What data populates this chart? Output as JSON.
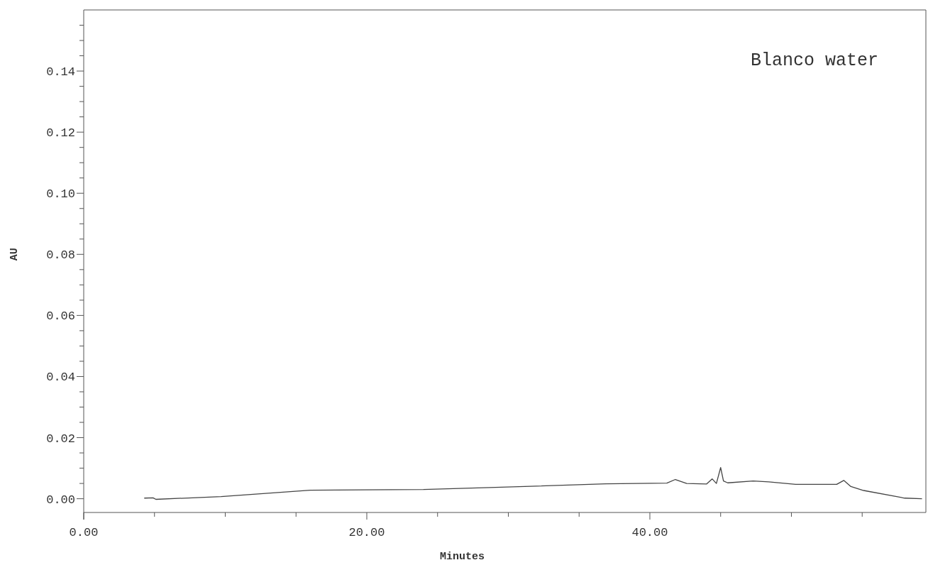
{
  "chart_data": {
    "type": "line",
    "xlabel": "Minutes",
    "ylabel": "AU",
    "annotations": [
      "Blanco water"
    ],
    "xlim": [
      0,
      59.5
    ],
    "ylim": [
      -0.0045,
      0.16
    ],
    "xticks": [
      {
        "value": 0,
        "label": "0.00"
      },
      {
        "value": 5,
        "label": null
      },
      {
        "value": 10,
        "label": null
      },
      {
        "value": 15,
        "label": null
      },
      {
        "value": 20,
        "label": "20.00"
      },
      {
        "value": 25,
        "label": null
      },
      {
        "value": 30,
        "label": null
      },
      {
        "value": 35,
        "label": null
      },
      {
        "value": 40,
        "label": "40.00"
      },
      {
        "value": 45,
        "label": null
      },
      {
        "value": 50,
        "label": null
      },
      {
        "value": 55,
        "label": null
      }
    ],
    "yticks": [
      {
        "value": 0,
        "label": "0.00"
      },
      {
        "value": 0.005,
        "label": null
      },
      {
        "value": 0.01,
        "label": null
      },
      {
        "value": 0.015,
        "label": null
      },
      {
        "value": 0.02,
        "label": "0.02"
      },
      {
        "value": 0.025,
        "label": null
      },
      {
        "value": 0.03,
        "label": null
      },
      {
        "value": 0.035,
        "label": null
      },
      {
        "value": 0.04,
        "label": "0.04"
      },
      {
        "value": 0.045,
        "label": null
      },
      {
        "value": 0.05,
        "label": null
      },
      {
        "value": 0.055,
        "label": null
      },
      {
        "value": 0.06,
        "label": "0.06"
      },
      {
        "value": 0.065,
        "label": null
      },
      {
        "value": 0.07,
        "label": null
      },
      {
        "value": 0.075,
        "label": null
      },
      {
        "value": 0.08,
        "label": "0.08"
      },
      {
        "value": 0.085,
        "label": null
      },
      {
        "value": 0.09,
        "label": null
      },
      {
        "value": 0.095,
        "label": null
      },
      {
        "value": 0.1,
        "label": "0.10"
      },
      {
        "value": 0.105,
        "label": null
      },
      {
        "value": 0.11,
        "label": null
      },
      {
        "value": 0.115,
        "label": null
      },
      {
        "value": 0.12,
        "label": "0.12"
      },
      {
        "value": 0.125,
        "label": null
      },
      {
        "value": 0.13,
        "label": null
      },
      {
        "value": 0.135,
        "label": null
      },
      {
        "value": 0.14,
        "label": "0.14"
      },
      {
        "value": 0.145,
        "label": null
      },
      {
        "value": 0.15,
        "label": null
      },
      {
        "value": 0.155,
        "label": null
      }
    ],
    "grid": false,
    "marker": "none",
    "line_style": "solid",
    "series": [
      {
        "color": "#444444",
        "x": [
          4.3,
          4.9,
          5.1,
          9.7,
          16,
          24,
          29.1,
          36.9,
          41.2,
          41.8,
          42.6,
          44,
          44.4,
          44.7,
          45,
          45.2,
          45.5,
          47.3,
          48.4,
          50.3,
          53.2,
          53.7,
          54.2,
          55.1,
          58,
          59.2
        ],
        "values": [
          0.0002,
          0.0003,
          -0.0002,
          0.0007,
          0.0028,
          0.003,
          0.0037,
          0.0049,
          0.0051,
          0.0063,
          0.005,
          0.0048,
          0.0065,
          0.005,
          0.0102,
          0.0058,
          0.0052,
          0.0058,
          0.0055,
          0.0047,
          0.0047,
          0.006,
          0.004,
          0.0027,
          0.0002,
          0.0
        ]
      }
    ]
  }
}
